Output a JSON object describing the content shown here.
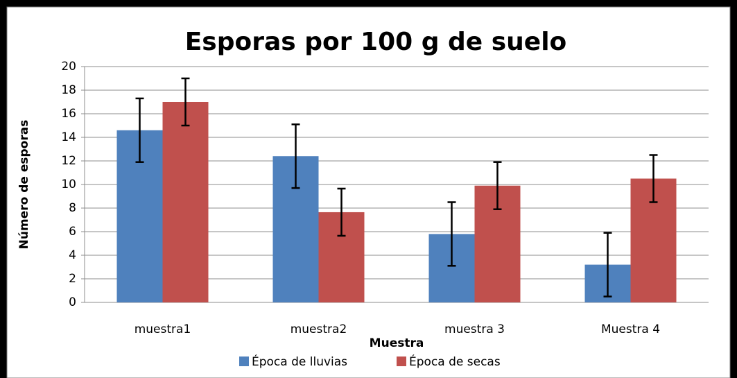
{
  "chart_data": {
    "type": "bar",
    "title": "Esporas por 100 g de suelo",
    "xlabel": "Muestra",
    "ylabel": "Número de esporas",
    "categories": [
      "muestra1",
      "muestra2",
      "muestra 3",
      "Muestra 4"
    ],
    "series": [
      {
        "name": "Época de lluvias",
        "color": "#4f81bd",
        "values": [
          14.6,
          12.4,
          5.8,
          3.2
        ],
        "errors": [
          2.7,
          2.7,
          2.7,
          2.7
        ]
      },
      {
        "name": "Época de secas",
        "color": "#c0504d",
        "values": [
          17.0,
          7.65,
          9.9,
          10.5
        ],
        "errors": [
          2.0,
          2.0,
          2.0,
          2.0
        ]
      }
    ],
    "ylim": [
      0,
      20
    ],
    "yticks": [
      0,
      2,
      4,
      6,
      8,
      10,
      12,
      14,
      16,
      18,
      20
    ],
    "grid": true,
    "legend": "bottom"
  }
}
